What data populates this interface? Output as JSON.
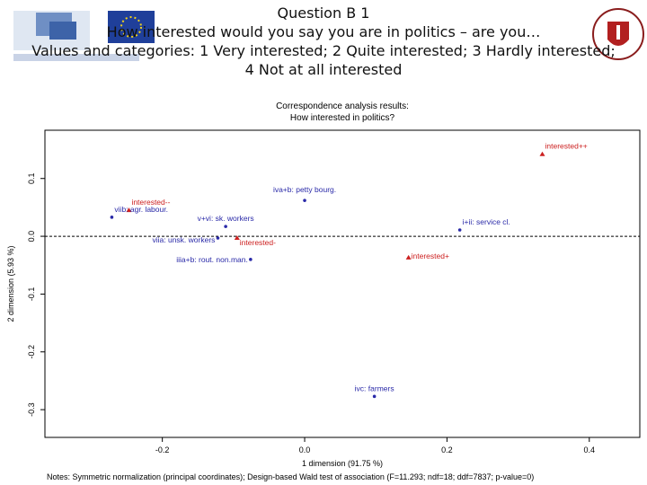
{
  "header": {
    "lines": [
      "Question B 1",
      "How interested would you say you are in politics – are you…",
      "Values and categories: 1 Very interested; 2 Quite interested; 3 Hardly interested;",
      "4 Not at all interested"
    ]
  },
  "chart_data": {
    "type": "scatter",
    "title": [
      "Correspondence analysis results:",
      "How interested in politics?"
    ],
    "xlabel": "1 dimension (91.75 %)",
    "ylabel": "2 dimension (5.93 %)",
    "note": "Notes: Symmetric normalization (principal coordinates); Design-based Wald test of association (F=11.293; ndf=18; ddf=7837; p-value=0)",
    "xlim": [
      -0.365,
      0.471
    ],
    "ylim": [
      -0.348,
      0.1835
    ],
    "xticks": [
      -0.2,
      {
        "value": 0,
        "label": "0.0"
      },
      0.2,
      0.4
    ],
    "yticks": [
      -0.3,
      -0.2,
      -0.1,
      {
        "value": 0,
        "label": "0.0"
      },
      0.1
    ],
    "zero_line": true,
    "series": [
      {
        "color": "#cc2020",
        "marker": "triangle",
        "labels": [
          "interested++",
          "interested--",
          "interested-",
          "interested+"
        ],
        "x": [
          0.334,
          -0.247,
          -0.095,
          0.146
        ],
        "values": [
          0.142,
          0.045,
          -0.003,
          -0.037
        ]
      },
      {
        "color": "#2a2aa8",
        "marker": "circle",
        "labels": [
          "viib: agr. labour.",
          "iva+b: petty bourg.",
          "v+vi: sk. workers",
          "i+ii: service cl.",
          "viia: unsk. workers",
          "iiia+b: rout. non.man.",
          "ivc: farmers"
        ],
        "x": [
          -0.271,
          0.0,
          -0.111,
          0.218,
          -0.122,
          -0.076,
          0.098
        ],
        "values": [
          0.033,
          0.062,
          0.017,
          0.011,
          -0.003,
          -0.04,
          -0.277
        ]
      }
    ]
  }
}
